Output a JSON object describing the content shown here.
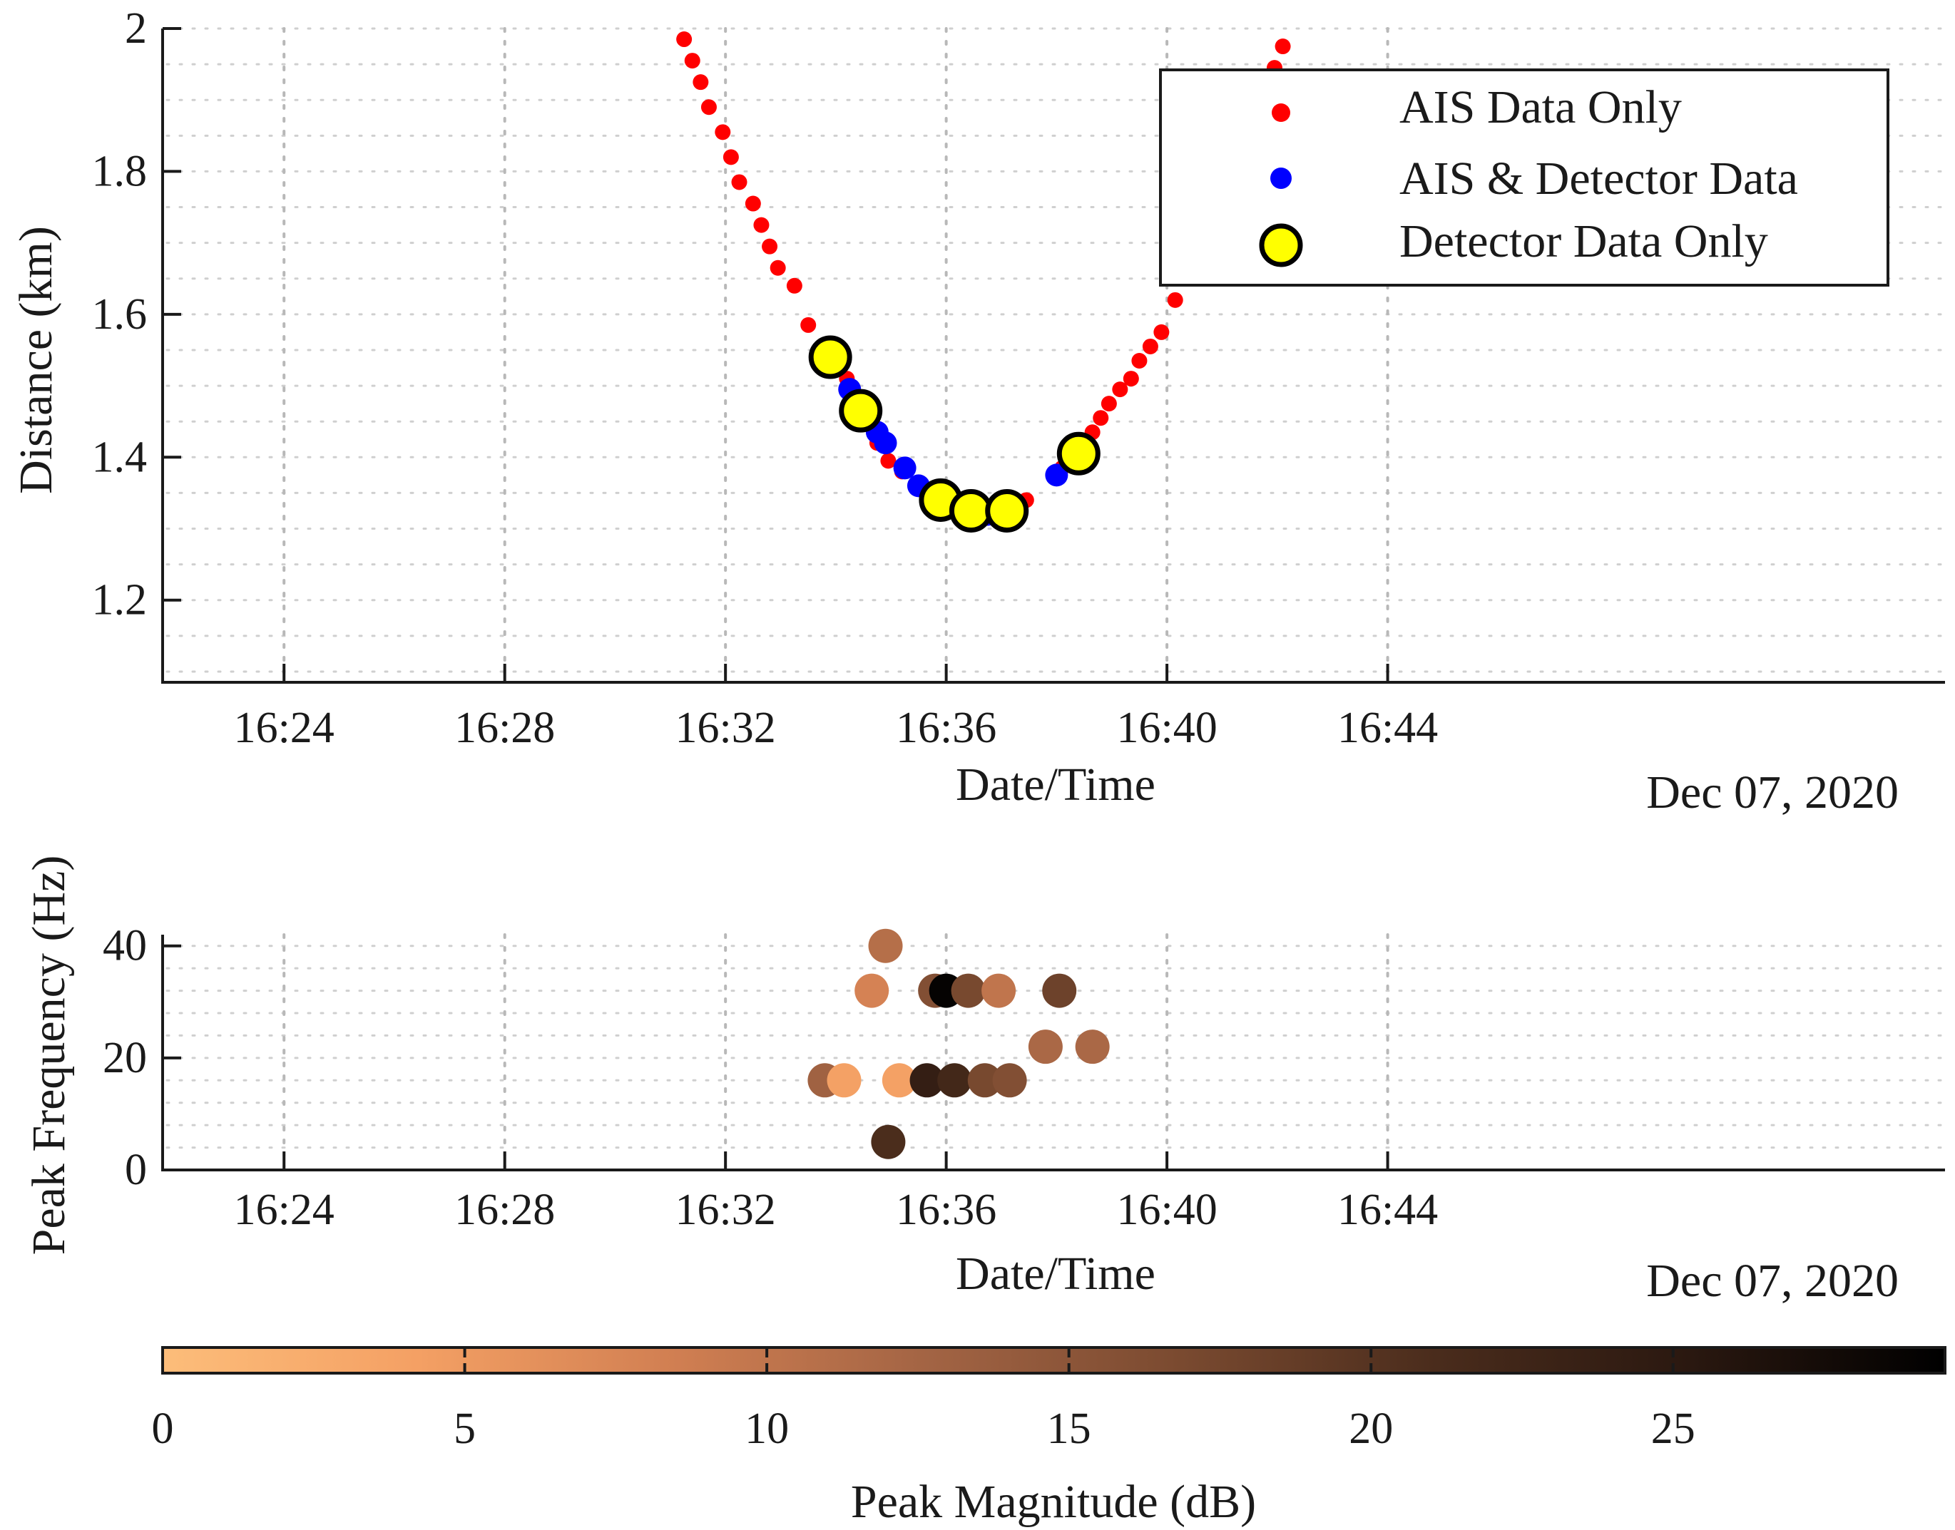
{
  "chart_data": [
    {
      "type": "scatter",
      "panel": "top",
      "xlabel": "Date/Time",
      "ylabel": "Distance (km)",
      "date_label": "Dec 07, 2020",
      "x_unit": "minutes after 16:00",
      "xlim": [
        21.8,
        54.1
      ],
      "ylim": [
        1.085,
        2.0
      ],
      "x_ticks": [
        24,
        28,
        32,
        36,
        40,
        44
      ],
      "x_tick_labels": [
        "16:24",
        "16:28",
        "16:32",
        "16:36",
        "16:40",
        "16:44"
      ],
      "y_ticks": [
        1.2,
        1.4,
        1.6,
        1.8,
        2.0
      ],
      "y_tick_labels": [
        "1.2",
        "1.4",
        "1.6",
        "1.8",
        "2"
      ],
      "grid": true,
      "legend_position": "top-right",
      "series": [
        {
          "name": "AIS Data Only",
          "color": "#ff0000",
          "marker": "dot",
          "x": [
            31.25,
            31.4,
            31.55,
            31.7,
            31.95,
            32.1,
            32.25,
            32.5,
            32.65,
            32.8,
            32.95,
            33.25,
            33.5,
            33.8,
            34.2,
            34.5,
            34.75,
            34.95,
            35.2,
            35.55,
            35.75,
            35.95,
            36.1,
            36.35,
            36.6,
            36.85,
            37.1,
            37.3,
            37.45,
            38.1,
            38.5,
            38.65,
            38.8,
            38.95,
            39.15,
            39.35,
            39.5,
            39.7,
            39.9,
            40.15,
            41.95,
            42.1
          ],
          "y": [
            1.985,
            1.955,
            1.925,
            1.89,
            1.855,
            1.82,
            1.785,
            1.755,
            1.725,
            1.695,
            1.665,
            1.64,
            1.585,
            1.555,
            1.51,
            1.45,
            1.42,
            1.395,
            1.38,
            1.355,
            1.345,
            1.335,
            1.33,
            1.325,
            1.32,
            1.32,
            1.325,
            1.33,
            1.34,
            1.385,
            1.42,
            1.435,
            1.455,
            1.475,
            1.495,
            1.51,
            1.535,
            1.555,
            1.575,
            1.62,
            1.945,
            1.975
          ]
        },
        {
          "name": "AIS & Detector Data",
          "color": "#0000ff",
          "marker": "dot",
          "x": [
            34.25,
            34.75,
            34.9,
            35.25,
            35.5,
            36.75,
            38.0
          ],
          "y": [
            1.495,
            1.435,
            1.42,
            1.385,
            1.36,
            1.32,
            1.375
          ]
        },
        {
          "name": "Detector Data Only",
          "color": "#ffff00",
          "marker": "circle",
          "x": [
            33.9,
            34.45,
            35.9,
            36.45,
            37.1,
            38.4
          ],
          "y": [
            1.54,
            1.465,
            1.34,
            1.325,
            1.325,
            1.405
          ]
        }
      ]
    },
    {
      "type": "scatter",
      "panel": "bottom",
      "xlabel": "Date/Time",
      "ylabel": "Peak Frequency (Hz)",
      "date_label": "Dec 07, 2020",
      "x_unit": "minutes after 16:00",
      "xlim": [
        21.8,
        54.1
      ],
      "ylim": [
        0,
        42
      ],
      "x_ticks": [
        24,
        28,
        32,
        36,
        40,
        44
      ],
      "x_tick_labels": [
        "16:24",
        "16:28",
        "16:32",
        "16:36",
        "16:40",
        "16:44"
      ],
      "y_ticks": [
        0,
        20,
        40
      ],
      "y_tick_labels": [
        "0",
        "20",
        "40"
      ],
      "grid": true,
      "points": [
        {
          "x": 34.9,
          "y": 40,
          "mag": 11
        },
        {
          "x": 34.65,
          "y": 32,
          "mag": 8
        },
        {
          "x": 35.8,
          "y": 32,
          "mag": 16
        },
        {
          "x": 36.0,
          "y": 32,
          "mag": 29
        },
        {
          "x": 36.4,
          "y": 32,
          "mag": 17
        },
        {
          "x": 36.95,
          "y": 32,
          "mag": 10
        },
        {
          "x": 38.05,
          "y": 32,
          "mag": 18
        },
        {
          "x": 37.8,
          "y": 22,
          "mag": 12
        },
        {
          "x": 38.65,
          "y": 22,
          "mag": 12
        },
        {
          "x": 33.8,
          "y": 16,
          "mag": 13
        },
        {
          "x": 34.15,
          "y": 16,
          "mag": 4
        },
        {
          "x": 35.15,
          "y": 16,
          "mag": 4
        },
        {
          "x": 35.65,
          "y": 16,
          "mag": 24
        },
        {
          "x": 36.15,
          "y": 16,
          "mag": 22
        },
        {
          "x": 36.7,
          "y": 16,
          "mag": 17
        },
        {
          "x": 37.15,
          "y": 16,
          "mag": 16
        },
        {
          "x": 34.95,
          "y": 5,
          "mag": 21
        }
      ]
    },
    {
      "type": "colorbar",
      "label": "Peak Magnitude (dB)",
      "range": [
        0,
        29.5
      ],
      "ticks": [
        0,
        5,
        10,
        15,
        20,
        25
      ],
      "tick_labels": [
        "0",
        "5",
        "10",
        "15",
        "20",
        "25"
      ],
      "color_stops": [
        "#fcbd7a",
        "#f4a064",
        "#d17f52",
        "#a36444",
        "#7a4a30",
        "#4a2c1c",
        "#2a1810",
        "#000000"
      ]
    }
  ]
}
